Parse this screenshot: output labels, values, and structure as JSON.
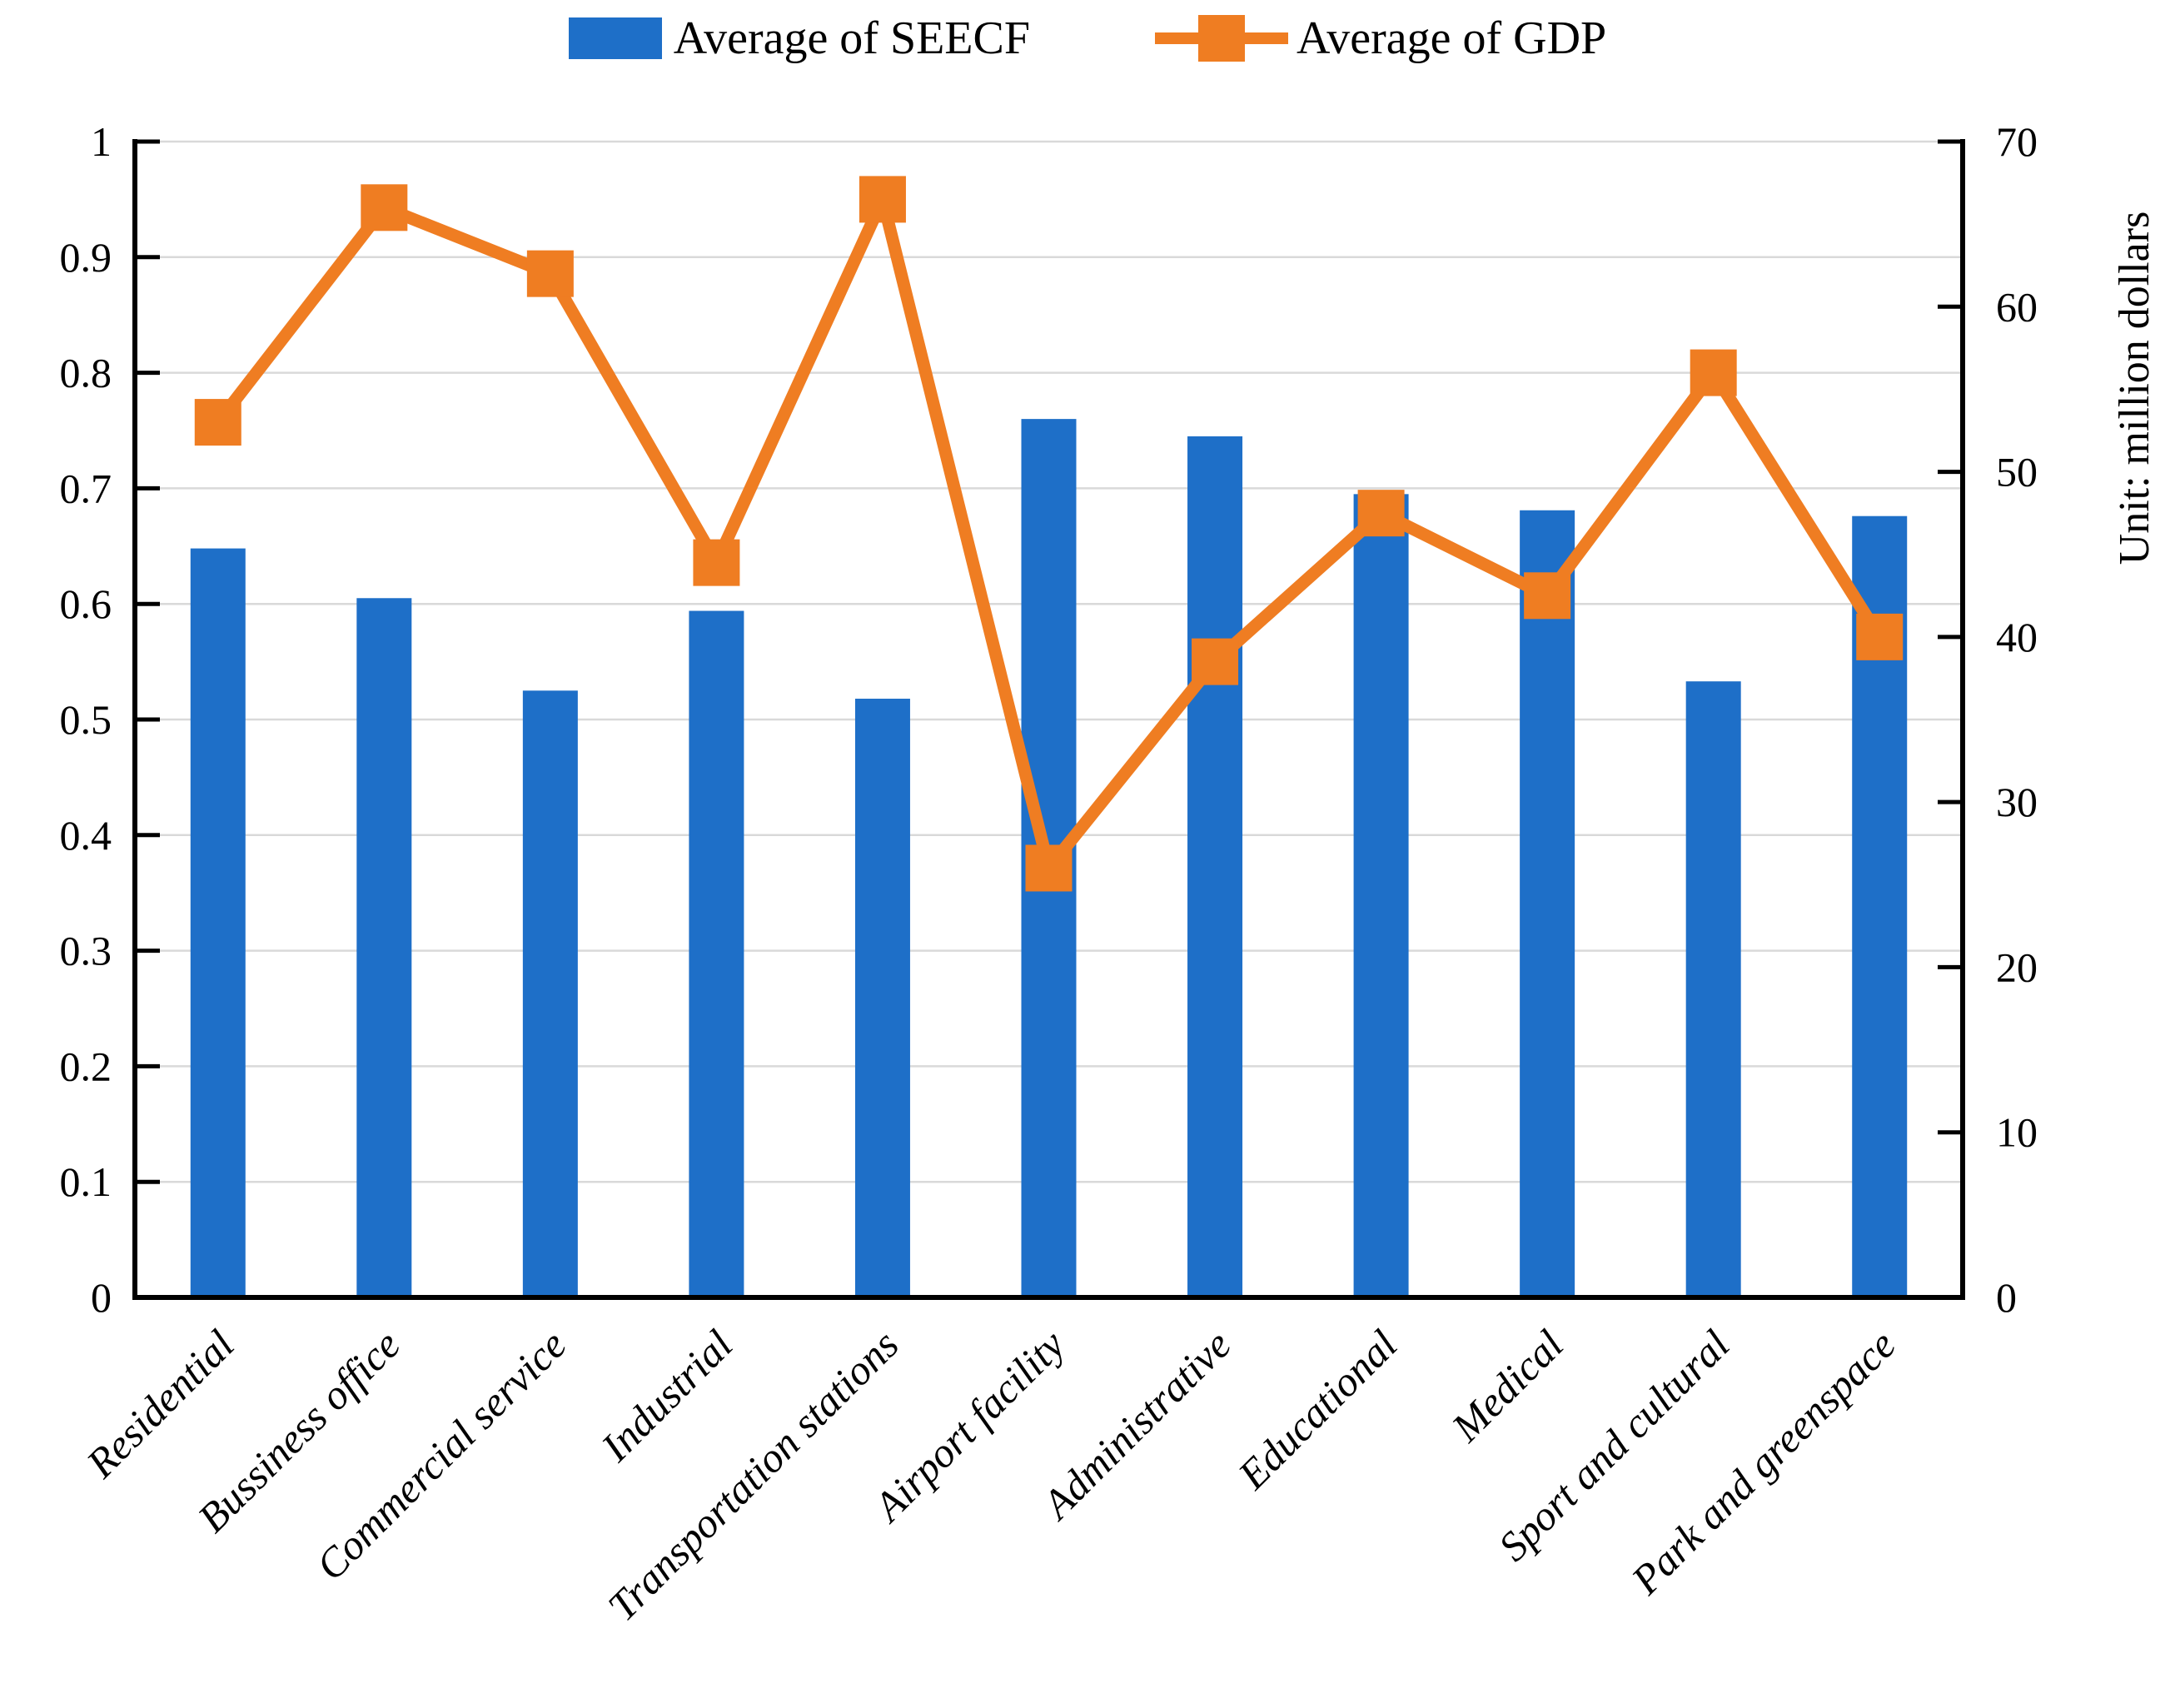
{
  "legend": {
    "seecf_label": "Average of SEECF",
    "gdp_label": "Average of GDP"
  },
  "right_axis_title": "Unit: million dollars",
  "chart_data": {
    "type": "combo: bar + line, dual y-axes",
    "title": "",
    "categories": [
      "Residential",
      "Bussiness office",
      "Commercial service",
      "Industrial",
      "Transportation stations",
      "Airport facility",
      "Administrative",
      "Educational",
      "Medical",
      "Sport and cultural",
      "Park and greenspace"
    ],
    "series": [
      {
        "name": "Average of SEECF",
        "type": "bar",
        "axis": "left",
        "color": "#1E6FC8",
        "values": [
          0.648,
          0.605,
          0.525,
          0.594,
          0.518,
          0.76,
          0.745,
          0.695,
          0.681,
          0.533,
          0.676
        ]
      },
      {
        "name": "Average of GDP",
        "type": "line",
        "axis": "right",
        "color": "#EF7D22",
        "marker": "square",
        "values": [
          53,
          66,
          62,
          44.5,
          66.5,
          26,
          38.5,
          47.5,
          42.5,
          56,
          40
        ]
      }
    ],
    "left_axis": {
      "min": 0,
      "max": 1,
      "step": 0.1,
      "tick_labels": [
        "1",
        "0.9",
        "0.8",
        "0.7",
        "0.6",
        "0.5",
        "0.4",
        "0.3",
        "0.2",
        "0.1",
        "0"
      ]
    },
    "right_axis": {
      "min": 0,
      "max": 70,
      "step": 10,
      "tick_labels": [
        "70",
        "60",
        "50",
        "40",
        "30",
        "20",
        "10",
        "0"
      ],
      "title": "Unit: million dollars"
    },
    "grid": true,
    "gridline_color": "#D9D9D9",
    "axis_color": "#000000",
    "legend_position": "top",
    "x_label_rotation_deg": 45
  }
}
